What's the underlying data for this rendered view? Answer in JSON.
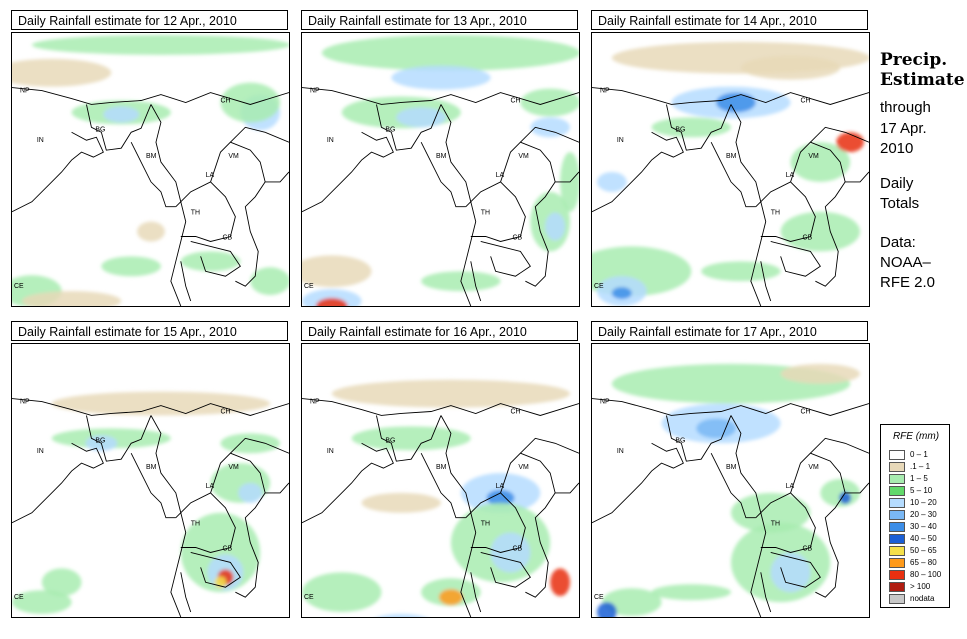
{
  "panels": [
    {
      "title": "Daily Rainfall estimate for  12 Apr., 2010"
    },
    {
      "title": "Daily Rainfall estimate for  13 Apr., 2010"
    },
    {
      "title": "Daily Rainfall estimate for  14 Apr., 2010"
    },
    {
      "title": "Daily Rainfall estimate for  15 Apr., 2010"
    },
    {
      "title": "Daily Rainfall estimate for  16 Apr., 2010"
    },
    {
      "title": "Daily Rainfall estimate for  17 Apr., 2010"
    }
  ],
  "map_labels": {
    "np": "NP",
    "ch": "CH",
    "bg": "BG",
    "in": "IN",
    "bm": "BM",
    "vm": "VM",
    "la": "LA",
    "th": "TH",
    "cb": "CB",
    "ce": "CE"
  },
  "side_info": {
    "title_line1": "Precip.",
    "title_line2": "Estimate",
    "through": "through",
    "date_line1": "17 Apr.",
    "date_line2": "2010",
    "daily_line1": "Daily",
    "daily_line2": "Totals",
    "data_line1": "Data:",
    "data_line2": "NOAA–",
    "data_line3": "RFE 2.0"
  },
  "legend": {
    "title": "RFE (mm)",
    "items": [
      {
        "label": "0 – 1",
        "color": "#ffffff"
      },
      {
        "label": ".1 – 1",
        "color": "#e8d9b9"
      },
      {
        "label": "1 – 5",
        "color": "#a8ecb0"
      },
      {
        "label": "5 – 10",
        "color": "#62d96b"
      },
      {
        "label": "10 – 20",
        "color": "#b5dcff"
      },
      {
        "label": "20 – 30",
        "color": "#7ab8f5"
      },
      {
        "label": "30 – 40",
        "color": "#3c8ee8"
      },
      {
        "label": "40 – 50",
        "color": "#1b5fd6"
      },
      {
        "label": "50 – 65",
        "color": "#f5e04a"
      },
      {
        "label": "65 – 80",
        "color": "#ff9a1a"
      },
      {
        "label": "80 – 100",
        "color": "#e83010"
      },
      {
        "label": "> 100",
        "color": "#b01c10"
      },
      {
        "label": "nodata",
        "color": "#c8c8c8"
      }
    ]
  }
}
